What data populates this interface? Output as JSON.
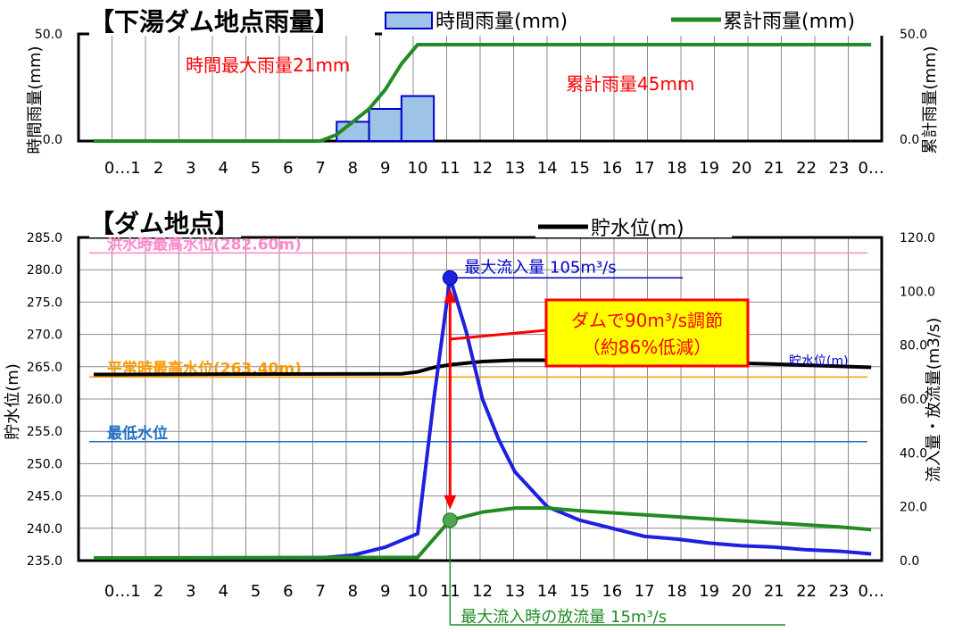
{
  "chart_data": [
    {
      "type": "bar",
      "title": "【下湯ダム地点雨量】",
      "legend": [
        "時間雨量(mm)",
        "累計雨量(mm)"
      ],
      "ylabel": "時間雨量(mm)",
      "y2label": "累計雨量(mm)",
      "ylim": [
        0,
        50
      ],
      "y2lim": [
        0,
        50
      ],
      "yticks": [
        "0.0",
        "50.0"
      ],
      "y2ticks": [
        "0.0",
        "50.0"
      ],
      "grid": true,
      "categories": [
        "0…1",
        "2",
        "3",
        "4",
        "5",
        "6",
        "7",
        "8",
        "9",
        "10",
        "11",
        "12",
        "13",
        "14",
        "15",
        "16",
        "17",
        "18",
        "19",
        "20",
        "21",
        "22",
        "23",
        "0…"
      ],
      "series": [
        {
          "name": "時間雨量(mm)",
          "type": "bar",
          "color": "#9dc3e6",
          "edge": "#0000cc",
          "values": [
            0,
            0,
            0,
            0,
            0,
            0,
            0,
            9,
            15,
            21,
            0,
            0,
            0,
            0,
            0,
            0,
            0,
            0,
            0,
            0,
            0,
            0,
            0,
            0
          ]
        },
        {
          "name": "累計雨量(mm)",
          "type": "line",
          "color": "#228b22",
          "points": [
            [
              0,
              0
            ],
            [
              7,
              0
            ],
            [
              7.5,
              3
            ],
            [
              8,
              9
            ],
            [
              8.5,
              15
            ],
            [
              9,
              24
            ],
            [
              9.5,
              36
            ],
            [
              10,
              45
            ],
            [
              24,
              45
            ]
          ]
        }
      ],
      "annotations": [
        {
          "text": "時間最大雨量21mm",
          "color": "#ff0000"
        },
        {
          "text": "累計雨量45mm",
          "color": "#ff0000"
        }
      ]
    },
    {
      "type": "line",
      "title": "【ダム地点】",
      "legend": [
        "貯水位(m)"
      ],
      "ylabel": "貯水位(m)",
      "y2label": "流入量・放流量(m3/s)",
      "ylim": [
        235,
        285
      ],
      "y2lim": [
        0,
        120
      ],
      "yticks": [
        "235.0",
        "240.0",
        "245.0",
        "250.0",
        "255.0",
        "260.0",
        "265.0",
        "270.0",
        "275.0",
        "280.0",
        "285.0"
      ],
      "y2ticks": [
        "0.0",
        "20.0",
        "40.0",
        "60.0",
        "80.0",
        "100.0",
        "120.0"
      ],
      "grid": true,
      "categories": [
        "0…1",
        "2",
        "3",
        "4",
        "5",
        "6",
        "7",
        "8",
        "9",
        "10",
        "11",
        "12",
        "13",
        "14",
        "15",
        "16",
        "17",
        "18",
        "19",
        "20",
        "21",
        "22",
        "23",
        "0…"
      ],
      "series": [
        {
          "name": "貯水位(m)",
          "axis": "left",
          "color": "#000000",
          "points": [
            [
              0,
              263.8
            ],
            [
              9.5,
              263.9
            ],
            [
              10,
              264.2
            ],
            [
              10.5,
              264.9
            ],
            [
              11,
              265.3
            ],
            [
              12,
              265.8
            ],
            [
              13,
              266.0
            ],
            [
              15,
              266.0
            ],
            [
              18,
              265.8
            ],
            [
              21,
              265.4
            ],
            [
              24,
              264.9
            ]
          ]
        },
        {
          "name": "流入量",
          "axis": "right",
          "color": "#1f1fe0",
          "points": [
            [
              0,
              1
            ],
            [
              7,
              1
            ],
            [
              7.5,
              1.5
            ],
            [
              8,
              2
            ],
            [
              9,
              5
            ],
            [
              10,
              10
            ],
            [
              10.5,
              60
            ],
            [
              11,
              105
            ],
            [
              11.5,
              85
            ],
            [
              12,
              60
            ],
            [
              12.5,
              45
            ],
            [
              13,
              33
            ],
            [
              14,
              20
            ],
            [
              15,
              15
            ],
            [
              16,
              12
            ],
            [
              17,
              9
            ],
            [
              18,
              8
            ],
            [
              19,
              6.5
            ],
            [
              20,
              5.5
            ],
            [
              21,
              5
            ],
            [
              22,
              4
            ],
            [
              23,
              3.5
            ],
            [
              24,
              2.5
            ]
          ]
        },
        {
          "name": "放流量",
          "axis": "right",
          "color": "#228b22",
          "points": [
            [
              0,
              1
            ],
            [
              10,
              1.2
            ],
            [
              11,
              15
            ],
            [
              12,
              18
            ],
            [
              13,
              19.5
            ],
            [
              14,
              19.5
            ],
            [
              15,
              18.5
            ],
            [
              17,
              17
            ],
            [
              19,
              15.5
            ],
            [
              21,
              14
            ],
            [
              23,
              12.5
            ],
            [
              24,
              11.5
            ]
          ]
        }
      ],
      "reference_lines": [
        {
          "label": "洪水時最高水位(282.60m)",
          "value": 282.6,
          "color": "#ff88cc"
        },
        {
          "label": "平常時最高水位(263.40m)",
          "value": 263.4,
          "color": "#ff9900"
        },
        {
          "label": "最低水位",
          "value": 253.4,
          "color": "#1f6fc5"
        }
      ],
      "series_label": "貯水位(m)",
      "annotations": {
        "max_inflow": {
          "text": "最大流入量 105m³/s",
          "value": 105,
          "hour": 11,
          "color": "#0000cc"
        },
        "regulation": {
          "line1": "ダムで90m³/s調節",
          "line2": "（約86%低減）",
          "box_fill": "#ffff00",
          "text_color": "#ff0000"
        },
        "release_at_max": {
          "text": "最大流入時の放流量 15m³/s",
          "value": 15,
          "hour": 11,
          "color": "#228b22"
        }
      }
    }
  ]
}
